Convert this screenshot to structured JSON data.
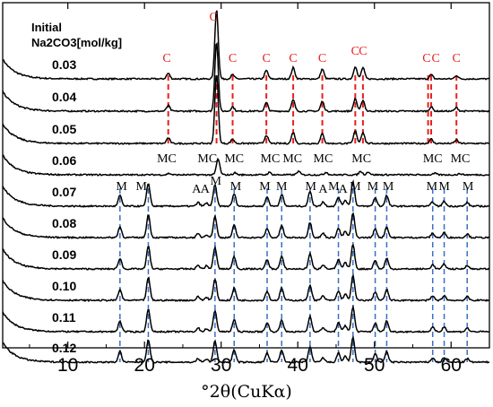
{
  "chart_data": {
    "type": "line",
    "x_label": "°2θ(CuKα)",
    "xlim": [
      1.5,
      65
    ],
    "x_ticks": [
      10,
      20,
      30,
      40,
      50,
      60
    ],
    "legend_title": [
      "Initial",
      "Na2CO3[mol/kg]"
    ],
    "series": [
      {
        "name": "0.03",
        "phase": "C",
        "peaks": [
          [
            29.4,
            1.0
          ],
          [
            23.1,
            0.08
          ],
          [
            31.5,
            0.06
          ],
          [
            35.9,
            0.12
          ],
          [
            39.4,
            0.16
          ],
          [
            43.2,
            0.14
          ],
          [
            47.5,
            0.18
          ],
          [
            48.5,
            0.16
          ],
          [
            57.4,
            0.06
          ],
          [
            60.7,
            0.05
          ]
        ]
      },
      {
        "name": "0.04",
        "phase": "C",
        "peaks": [
          [
            29.4,
            1.0
          ],
          [
            23.1,
            0.08
          ],
          [
            31.5,
            0.06
          ],
          [
            35.9,
            0.12
          ],
          [
            39.4,
            0.16
          ],
          [
            43.2,
            0.14
          ],
          [
            47.5,
            0.18
          ],
          [
            48.5,
            0.16
          ],
          [
            57.4,
            0.06
          ],
          [
            60.7,
            0.05
          ]
        ]
      },
      {
        "name": "0.05",
        "phase": "C",
        "peaks": [
          [
            29.4,
            1.0
          ],
          [
            23.1,
            0.08
          ],
          [
            31.5,
            0.06
          ],
          [
            35.9,
            0.12
          ],
          [
            39.4,
            0.16
          ],
          [
            43.2,
            0.14
          ],
          [
            47.5,
            0.18
          ],
          [
            48.5,
            0.16
          ],
          [
            57.4,
            0.06
          ],
          [
            60.7,
            0.05
          ]
        ]
      },
      {
        "name": "0.06",
        "phase": "MC",
        "peaks": [
          [
            29.6,
            0.55
          ],
          [
            23.2,
            0.05
          ],
          [
            31.8,
            0.07
          ],
          [
            36.3,
            0.08
          ],
          [
            40.1,
            0.12
          ],
          [
            43.7,
            0.09
          ],
          [
            48.2,
            0.12
          ],
          [
            49.2,
            0.1
          ],
          [
            57.9,
            0.05
          ],
          [
            61.2,
            0.04
          ]
        ]
      },
      {
        "name": "0.07",
        "phase": "M",
        "peaks": [
          [
            16.8,
            0.35
          ],
          [
            20.5,
            0.75
          ],
          [
            27.0,
            0.12
          ],
          [
            28.1,
            0.1
          ],
          [
            29.2,
            0.7
          ],
          [
            31.7,
            0.4
          ],
          [
            36.0,
            0.3
          ],
          [
            37.9,
            0.4
          ],
          [
            41.6,
            0.5
          ],
          [
            43.3,
            0.14
          ],
          [
            45.3,
            0.3
          ],
          [
            46.2,
            0.2
          ],
          [
            47.2,
            0.8
          ],
          [
            50.1,
            0.28
          ],
          [
            51.6,
            0.35
          ],
          [
            57.6,
            0.14
          ],
          [
            59.1,
            0.16
          ],
          [
            62.1,
            0.12
          ]
        ]
      },
      {
        "name": "0.08",
        "phase": "M",
        "peaks": [
          [
            16.8,
            0.35
          ],
          [
            20.5,
            0.75
          ],
          [
            27.0,
            0.12
          ],
          [
            28.1,
            0.1
          ],
          [
            29.2,
            0.7
          ],
          [
            31.7,
            0.4
          ],
          [
            36.0,
            0.3
          ],
          [
            37.9,
            0.4
          ],
          [
            41.6,
            0.5
          ],
          [
            43.3,
            0.14
          ],
          [
            45.3,
            0.3
          ],
          [
            46.2,
            0.2
          ],
          [
            47.2,
            0.8
          ],
          [
            50.1,
            0.28
          ],
          [
            51.6,
            0.35
          ],
          [
            57.6,
            0.14
          ],
          [
            59.1,
            0.16
          ],
          [
            62.1,
            0.12
          ]
        ]
      },
      {
        "name": "0.09",
        "phase": "M",
        "peaks": [
          [
            16.8,
            0.35
          ],
          [
            20.5,
            0.75
          ],
          [
            27.0,
            0.12
          ],
          [
            28.1,
            0.1
          ],
          [
            29.2,
            0.7
          ],
          [
            31.7,
            0.4
          ],
          [
            36.0,
            0.3
          ],
          [
            37.9,
            0.4
          ],
          [
            41.6,
            0.5
          ],
          [
            43.3,
            0.14
          ],
          [
            45.3,
            0.3
          ],
          [
            46.2,
            0.2
          ],
          [
            47.2,
            0.8
          ],
          [
            50.1,
            0.28
          ],
          [
            51.6,
            0.35
          ],
          [
            57.6,
            0.14
          ],
          [
            59.1,
            0.16
          ],
          [
            62.1,
            0.12
          ]
        ]
      },
      {
        "name": "0.10",
        "phase": "M",
        "peaks": [
          [
            16.8,
            0.35
          ],
          [
            20.5,
            0.75
          ],
          [
            27.0,
            0.12
          ],
          [
            28.1,
            0.1
          ],
          [
            29.2,
            0.7
          ],
          [
            31.7,
            0.4
          ],
          [
            36.0,
            0.3
          ],
          [
            37.9,
            0.4
          ],
          [
            41.6,
            0.5
          ],
          [
            43.3,
            0.14
          ],
          [
            45.3,
            0.3
          ],
          [
            46.2,
            0.2
          ],
          [
            47.2,
            0.8
          ],
          [
            50.1,
            0.28
          ],
          [
            51.6,
            0.35
          ],
          [
            57.6,
            0.14
          ],
          [
            59.1,
            0.16
          ],
          [
            62.1,
            0.12
          ]
        ]
      },
      {
        "name": "0.11",
        "phase": "M",
        "peaks": [
          [
            16.8,
            0.35
          ],
          [
            20.5,
            0.75
          ],
          [
            27.0,
            0.12
          ],
          [
            28.1,
            0.1
          ],
          [
            29.2,
            0.7
          ],
          [
            31.7,
            0.4
          ],
          [
            36.0,
            0.3
          ],
          [
            37.9,
            0.4
          ],
          [
            41.6,
            0.5
          ],
          [
            43.3,
            0.14
          ],
          [
            45.3,
            0.3
          ],
          [
            46.2,
            0.2
          ],
          [
            47.2,
            0.8
          ],
          [
            50.1,
            0.28
          ],
          [
            51.6,
            0.35
          ],
          [
            57.6,
            0.14
          ],
          [
            59.1,
            0.16
          ],
          [
            62.1,
            0.12
          ]
        ]
      },
      {
        "name": "0.12",
        "phase": "M",
        "peaks": [
          [
            16.8,
            0.35
          ],
          [
            20.5,
            0.75
          ],
          [
            27.0,
            0.12
          ],
          [
            28.1,
            0.1
          ],
          [
            29.2,
            0.7
          ],
          [
            31.7,
            0.4
          ],
          [
            36.0,
            0.3
          ],
          [
            37.9,
            0.4
          ],
          [
            41.6,
            0.5
          ],
          [
            43.3,
            0.14
          ],
          [
            45.3,
            0.3
          ],
          [
            46.2,
            0.2
          ],
          [
            47.2,
            0.8
          ],
          [
            50.1,
            0.28
          ],
          [
            51.6,
            0.35
          ],
          [
            57.6,
            0.14
          ],
          [
            59.1,
            0.16
          ],
          [
            62.1,
            0.12
          ]
        ]
      }
    ],
    "reference_lines": {
      "C": {
        "color": "#e8201e",
        "x": [
          23.1,
          29.4,
          31.5,
          35.9,
          39.4,
          43.2,
          47.5,
          48.5,
          57.0,
          57.4,
          60.7
        ]
      },
      "M": {
        "color": "#3a6fc4",
        "x": [
          16.8,
          20.5,
          29.2,
          31.7,
          36.0,
          37.9,
          41.6,
          45.3,
          47.2,
          50.1,
          51.6,
          57.6,
          59.1,
          62.1
        ]
      }
    },
    "annotations": {
      "C": {
        "color": "#e8201e",
        "marks": [
          [
            22.9,
            "C"
          ],
          [
            29.0,
            "C"
          ],
          [
            31.5,
            "C"
          ],
          [
            35.9,
            "C"
          ],
          [
            39.4,
            "C"
          ],
          [
            43.2,
            "C"
          ],
          [
            47.5,
            "C"
          ],
          [
            48.5,
            "C"
          ],
          [
            56.8,
            "C"
          ],
          [
            58.0,
            "C"
          ],
          [
            60.7,
            "C"
          ]
        ]
      },
      "MC": {
        "color": "#000000",
        "marks": [
          [
            22.9,
            "MC"
          ],
          [
            28.2,
            "MC"
          ],
          [
            31.7,
            "MC"
          ],
          [
            36.4,
            "MC"
          ],
          [
            39.3,
            "MC"
          ],
          [
            43.3,
            "MC"
          ],
          [
            48.3,
            "MC"
          ],
          [
            57.6,
            "MC"
          ],
          [
            61.2,
            "MC"
          ]
        ]
      },
      "M": {
        "color": "#000000",
        "marks": [
          [
            17.0,
            "M"
          ],
          [
            19.6,
            "M"
          ],
          [
            26.8,
            "A"
          ],
          [
            27.9,
            "A"
          ],
          [
            29.3,
            "M"
          ],
          [
            31.9,
            "M"
          ],
          [
            35.7,
            "M"
          ],
          [
            37.9,
            "M"
          ],
          [
            41.7,
            "M"
          ],
          [
            43.3,
            "A"
          ],
          [
            44.7,
            "M"
          ],
          [
            45.9,
            "A"
          ],
          [
            47.5,
            "M"
          ],
          [
            49.8,
            "M"
          ],
          [
            51.8,
            "M"
          ],
          [
            57.5,
            "M"
          ],
          [
            59.1,
            "M"
          ],
          [
            62.2,
            "M"
          ]
        ]
      }
    }
  }
}
